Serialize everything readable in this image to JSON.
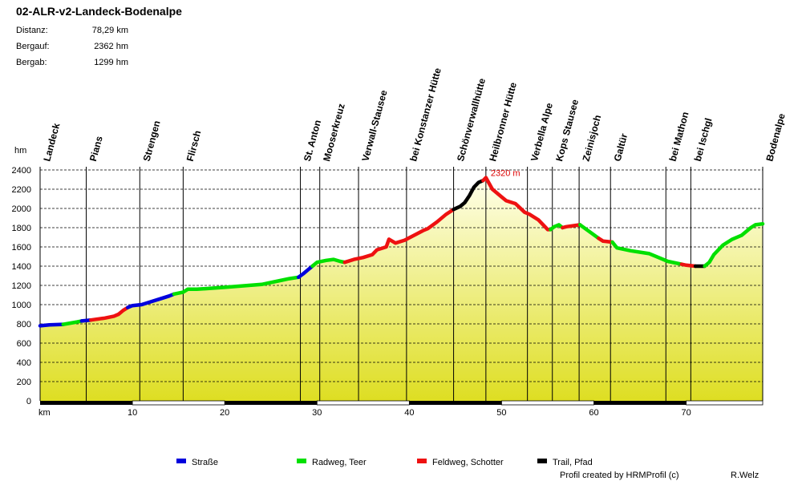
{
  "title": "02-ALR-v2-Landeck-Bodenalpe",
  "stats": [
    {
      "label": "Distanz:",
      "value": "78,29 km"
    },
    {
      "label": "Bergauf:",
      "value": "2362 hm"
    },
    {
      "label": "Bergab:",
      "value": "1299 hm"
    }
  ],
  "credit": "Profil created by HRMProfil (c)",
  "author": "R.Welz",
  "chart_data": {
    "type": "area",
    "ylabel": "hm",
    "xlabel": "km",
    "xlim": [
      0,
      78.29
    ],
    "ylim": [
      0,
      2400
    ],
    "yticks": [
      0,
      200,
      400,
      600,
      800,
      1000,
      1200,
      1400,
      1600,
      1800,
      2000,
      2200,
      2400
    ],
    "xticks": [
      10,
      20,
      30,
      40,
      50,
      60,
      70
    ],
    "grid": "horizontal dashed",
    "max_annotation": {
      "x": 48.3,
      "y": 2320,
      "text": "2320 m"
    },
    "waypoints": [
      {
        "name": "Landeck",
        "x": 0
      },
      {
        "name": "Pians",
        "x": 5
      },
      {
        "name": "Strengen",
        "x": 10.8
      },
      {
        "name": "Flirsch",
        "x": 15.5
      },
      {
        "name": "St. Anton",
        "x": 28.2
      },
      {
        "name": "Mooserkreuz",
        "x": 30.3
      },
      {
        "name": "Verwall-Stausee",
        "x": 34.5
      },
      {
        "name": "bei Konstanzer Hütte",
        "x": 39.7
      },
      {
        "name": "Schönverwallhütte",
        "x": 44.8
      },
      {
        "name": "Heilbronner Hütte",
        "x": 48.3
      },
      {
        "name": "Verbella Alpe",
        "x": 52.8
      },
      {
        "name": "Kops Stausee",
        "x": 55.5
      },
      {
        "name": "Zeinisjoch",
        "x": 58.4
      },
      {
        "name": "Galtür",
        "x": 61.8
      },
      {
        "name": "bei Mathon",
        "x": 67.8
      },
      {
        "name": "bei Ischgl",
        "x": 70.5
      },
      {
        "name": "Bodenalpe",
        "x": 78.29
      }
    ],
    "legend": [
      {
        "name": "Straße",
        "color": "#0000dd"
      },
      {
        "name": "Radweg, Teer",
        "color": "#00e000"
      },
      {
        "name": "Feldweg, Schotter",
        "color": "#ee1111"
      },
      {
        "name": "Trail, Pfad",
        "color": "#000000"
      }
    ],
    "series": [
      {
        "surface": "Straße",
        "points": [
          [
            0,
            780
          ],
          [
            1,
            790
          ],
          [
            2.5,
            795
          ]
        ]
      },
      {
        "surface": "Radweg, Teer",
        "points": [
          [
            2.5,
            795
          ],
          [
            4,
            820
          ],
          [
            4.5,
            830
          ]
        ]
      },
      {
        "surface": "Straße",
        "points": [
          [
            4.5,
            830
          ],
          [
            5.5,
            840
          ]
        ]
      },
      {
        "surface": "Feldweg, Schotter",
        "points": [
          [
            5.5,
            840
          ],
          [
            7,
            860
          ],
          [
            8,
            880
          ],
          [
            8.5,
            900
          ],
          [
            9,
            940
          ],
          [
            9.5,
            970
          ]
        ]
      },
      {
        "surface": "Straße",
        "points": [
          [
            9.5,
            970
          ],
          [
            10,
            990
          ],
          [
            11,
            1000
          ],
          [
            12,
            1030
          ],
          [
            13,
            1060
          ],
          [
            14,
            1090
          ],
          [
            14.5,
            1110
          ]
        ]
      },
      {
        "surface": "Radweg, Teer",
        "points": [
          [
            14.5,
            1110
          ],
          [
            15.5,
            1130
          ],
          [
            16,
            1160
          ],
          [
            17,
            1160
          ],
          [
            20,
            1180
          ],
          [
            24,
            1210
          ],
          [
            26,
            1250
          ],
          [
            27,
            1270
          ],
          [
            28,
            1285
          ]
        ]
      },
      {
        "surface": "Straße",
        "points": [
          [
            28,
            1285
          ],
          [
            28.5,
            1320
          ],
          [
            29,
            1360
          ],
          [
            29.5,
            1400
          ]
        ]
      },
      {
        "surface": "Radweg, Teer",
        "points": [
          [
            29.5,
            1400
          ],
          [
            30,
            1440
          ],
          [
            31,
            1460
          ],
          [
            31.8,
            1470
          ],
          [
            32.5,
            1450
          ],
          [
            33,
            1440
          ]
        ]
      },
      {
        "surface": "Feldweg, Schotter",
        "points": [
          [
            33,
            1440
          ],
          [
            34,
            1470
          ],
          [
            35,
            1490
          ],
          [
            36,
            1520
          ],
          [
            36.5,
            1570
          ],
          [
            37.5,
            1600
          ],
          [
            37.8,
            1680
          ],
          [
            38.5,
            1640
          ],
          [
            39.5,
            1670
          ],
          [
            40.5,
            1720
          ],
          [
            41.5,
            1770
          ],
          [
            42,
            1790
          ],
          [
            43,
            1860
          ],
          [
            44,
            1940
          ],
          [
            44.8,
            1990
          ]
        ]
      },
      {
        "surface": "Trail, Pfad",
        "points": [
          [
            44.8,
            1990
          ],
          [
            45.5,
            2020
          ],
          [
            46,
            2060
          ],
          [
            46.5,
            2130
          ],
          [
            47,
            2220
          ],
          [
            47.5,
            2270
          ],
          [
            48,
            2290
          ]
        ]
      },
      {
        "surface": "Feldweg, Schotter",
        "points": [
          [
            48,
            2290
          ],
          [
            48.3,
            2320
          ],
          [
            49,
            2200
          ],
          [
            50,
            2120
          ],
          [
            50.5,
            2080
          ],
          [
            51.5,
            2050
          ],
          [
            52.5,
            1960
          ],
          [
            53,
            1940
          ],
          [
            54,
            1880
          ],
          [
            55,
            1780
          ],
          [
            55.3,
            1780
          ]
        ]
      },
      {
        "surface": "Radweg, Teer",
        "points": [
          [
            55.3,
            1780
          ],
          [
            55.7,
            1810
          ],
          [
            56.2,
            1830
          ],
          [
            56.6,
            1800
          ]
        ]
      },
      {
        "surface": "Feldweg, Schotter",
        "points": [
          [
            56.6,
            1800
          ],
          [
            57,
            1810
          ],
          [
            58.5,
            1830
          ]
        ]
      },
      {
        "surface": "Radweg, Teer",
        "points": [
          [
            58.5,
            1830
          ],
          [
            59.5,
            1760
          ],
          [
            60.5,
            1690
          ]
        ]
      },
      {
        "surface": "Feldweg, Schotter",
        "points": [
          [
            60.5,
            1690
          ],
          [
            61,
            1660
          ],
          [
            62,
            1650
          ]
        ]
      },
      {
        "surface": "Radweg, Teer",
        "points": [
          [
            62,
            1650
          ],
          [
            62.5,
            1590
          ],
          [
            64,
            1560
          ],
          [
            66,
            1530
          ],
          [
            67,
            1490
          ],
          [
            68,
            1450
          ],
          [
            69.5,
            1420
          ]
        ]
      },
      {
        "surface": "Feldweg, Schotter",
        "points": [
          [
            69.5,
            1420
          ],
          [
            70,
            1410
          ],
          [
            71,
            1400
          ]
        ]
      },
      {
        "surface": "Trail, Pfad",
        "points": [
          [
            71,
            1400
          ],
          [
            72,
            1400
          ]
        ]
      },
      {
        "surface": "Radweg, Teer",
        "points": [
          [
            72,
            1400
          ],
          [
            72.5,
            1440
          ],
          [
            73,
            1520
          ],
          [
            74,
            1620
          ],
          [
            75,
            1680
          ],
          [
            76,
            1720
          ],
          [
            77,
            1800
          ],
          [
            77.5,
            1830
          ],
          [
            78.29,
            1840
          ]
        ]
      }
    ]
  }
}
